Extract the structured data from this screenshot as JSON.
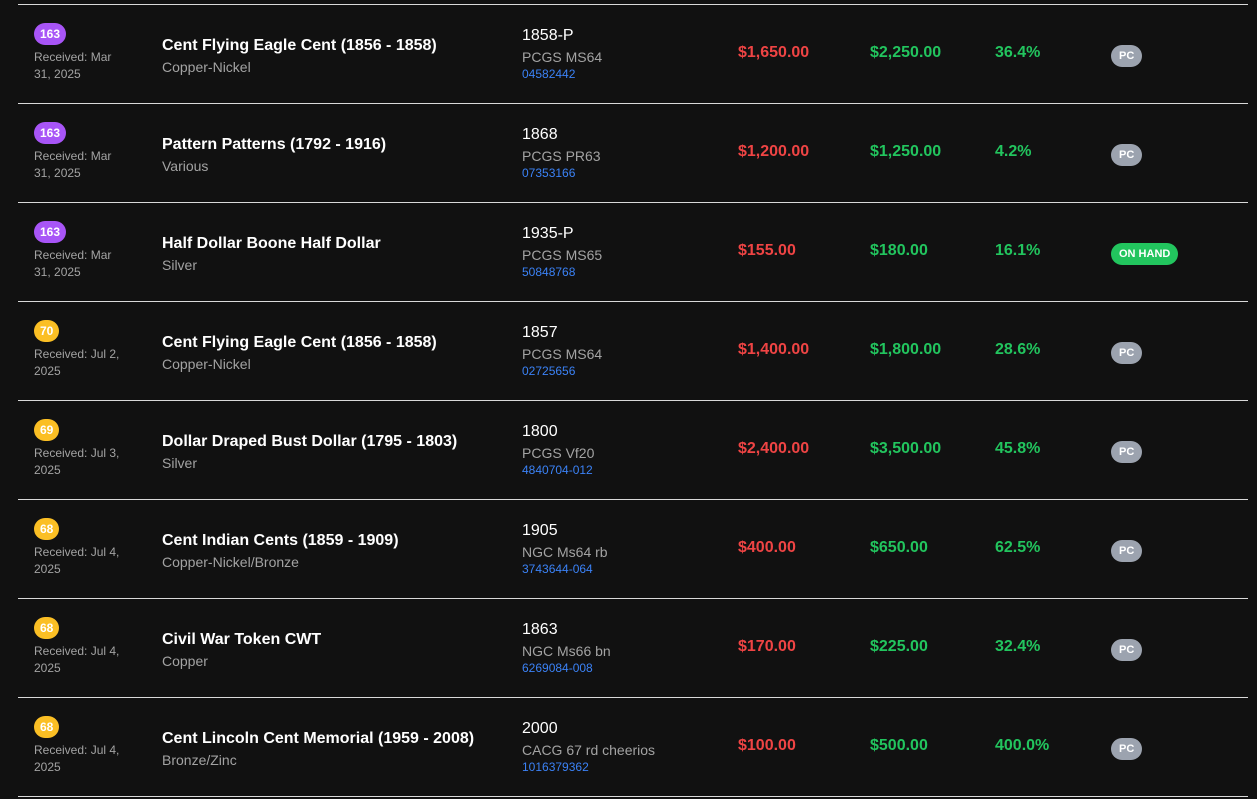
{
  "rows": [
    {
      "age": "163",
      "age_color": "#a855f7",
      "received": "Received: Mar 31, 2025",
      "title": "Cent Flying Eagle Cent (1856 - 1858)",
      "metal": "Copper-Nickel",
      "year": "1858-P",
      "grade": "PCGS MS64",
      "cert": "04582442",
      "cost": "$1,650.00",
      "value": "$2,250.00",
      "gain": "36.4%",
      "status": "PC"
    },
    {
      "age": "163",
      "age_color": "#a855f7",
      "received": "Received: Mar 31, 2025",
      "title": "Pattern Patterns (1792 - 1916)",
      "metal": "Various",
      "year": "1868",
      "grade": "PCGS PR63",
      "cert": "07353166",
      "cost": "$1,200.00",
      "value": "$1,250.00",
      "gain": "4.2%",
      "status": "PC"
    },
    {
      "age": "163",
      "age_color": "#a855f7",
      "received": "Received: Mar 31, 2025",
      "title": "Half Dollar Boone Half Dollar",
      "metal": "Silver",
      "year": "1935-P",
      "grade": "PCGS MS65",
      "cert": "50848768",
      "cost": "$155.00",
      "value": "$180.00",
      "gain": "16.1%",
      "status": "ON HAND"
    },
    {
      "age": "70",
      "age_color": "#fbbf24",
      "received": "Received: Jul 2, 2025",
      "title": "Cent Flying Eagle Cent (1856 - 1858)",
      "metal": "Copper-Nickel",
      "year": "1857",
      "grade": "PCGS MS64",
      "cert": "02725656",
      "cost": "$1,400.00",
      "value": "$1,800.00",
      "gain": "28.6%",
      "status": "PC"
    },
    {
      "age": "69",
      "age_color": "#fbbf24",
      "received": "Received: Jul 3, 2025",
      "title": "Dollar Draped Bust Dollar (1795 - 1803)",
      "metal": "Silver",
      "year": "1800",
      "grade": "PCGS Vf20",
      "cert": "4840704-012",
      "cost": "$2,400.00",
      "value": "$3,500.00",
      "gain": "45.8%",
      "status": "PC"
    },
    {
      "age": "68",
      "age_color": "#fbbf24",
      "received": "Received: Jul 4, 2025",
      "title": "Cent Indian Cents (1859 - 1909)",
      "metal": "Copper-Nickel/Bronze",
      "year": "1905",
      "grade": "NGC Ms64 rb",
      "cert": "3743644-064",
      "cost": "$400.00",
      "value": "$650.00",
      "gain": "62.5%",
      "status": "PC"
    },
    {
      "age": "68",
      "age_color": "#fbbf24",
      "received": "Received: Jul 4, 2025",
      "title": "Civil War Token CWT",
      "metal": "Copper",
      "year": "1863",
      "grade": "NGC Ms66 bn",
      "cert": "6269084-008",
      "cost": "$170.00",
      "value": "$225.00",
      "gain": "32.4%",
      "status": "PC"
    },
    {
      "age": "68",
      "age_color": "#fbbf24",
      "received": "Received: Jul 4, 2025",
      "title": "Cent Lincoln Cent Memorial (1959 - 2008)",
      "metal": "Bronze/Zinc",
      "year": "2000",
      "grade": "CACG 67 rd cheerios",
      "cert": "1016379362",
      "cost": "$100.00",
      "value": "$500.00",
      "gain": "400.0%",
      "status": "PC"
    }
  ]
}
